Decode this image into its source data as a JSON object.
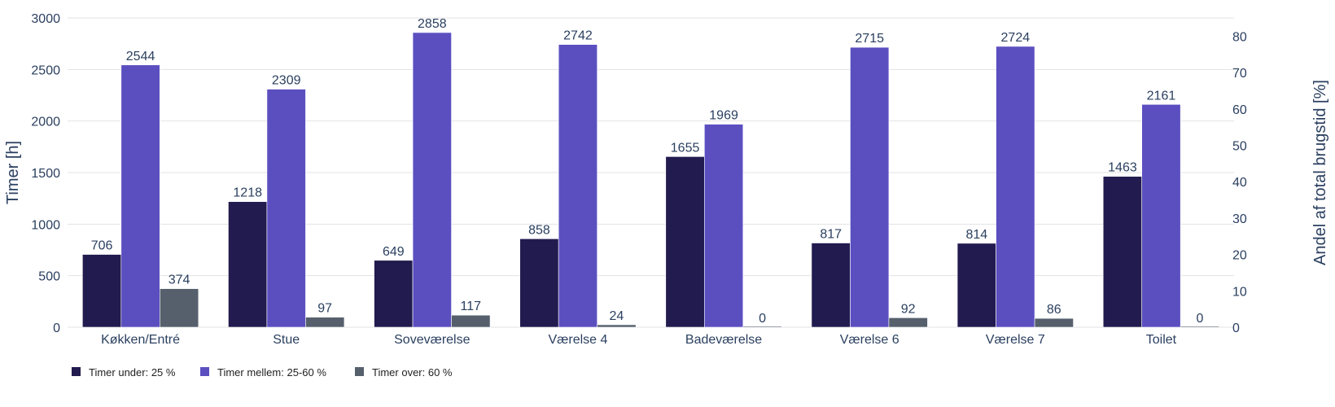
{
  "chart_data": {
    "type": "bar",
    "categories": [
      "Køkken/Entré",
      "Stue",
      "Soveværelse",
      "Værelse 4",
      "Badeværelse",
      "Værelse 6",
      "Værelse 7",
      "Toilet"
    ],
    "series": [
      {
        "name": "Timer under: 25 %",
        "color": "#221b4f",
        "values": [
          706,
          1218,
          649,
          858,
          1655,
          817,
          814,
          1463
        ]
      },
      {
        "name": "Timer mellem: 25-60 %",
        "color": "#5b4fc0",
        "values": [
          2544,
          2309,
          2858,
          2742,
          1969,
          2715,
          2724,
          2161
        ]
      },
      {
        "name": "Timer over: 60 %",
        "color": "#56606d",
        "values": [
          374,
          97,
          117,
          24,
          0,
          92,
          86,
          0
        ]
      }
    ],
    "title": "",
    "xlabel": "",
    "ylabel": "Timer [h]",
    "y2label": "Andel af total brugstid [%]",
    "ylim": [
      0,
      3000
    ],
    "y_ticks": [
      0,
      500,
      1000,
      1500,
      2000,
      2500,
      3000
    ],
    "y2lim": [
      0,
      85
    ],
    "y2_ticks": [
      0,
      10,
      20,
      30,
      40,
      50,
      60,
      70,
      80
    ],
    "grid": true,
    "legend_position": "bottom-left"
  }
}
